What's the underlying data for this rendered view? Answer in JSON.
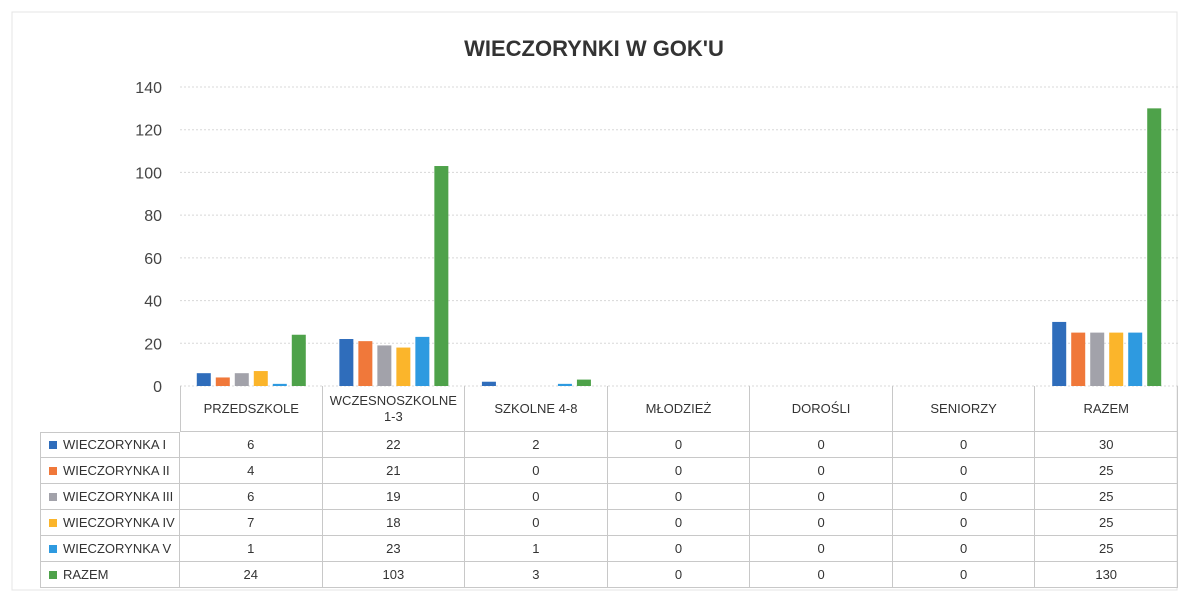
{
  "chart_data": {
    "type": "bar",
    "title": "WIECZORYNKI W GOK'U",
    "categories": [
      "PRZEDSZKOLE",
      "WCZESNOSZKOLNE 1-3",
      "SZKOLNE 4-8",
      "MŁODZIEŻ",
      "DOROŚLI",
      "SENIORZY",
      "RAZEM"
    ],
    "series": [
      {
        "name": "WIECZORYNKA I",
        "color": "#2f6dbb",
        "values": [
          6,
          22,
          2,
          0,
          0,
          0,
          30
        ]
      },
      {
        "name": "WIECZORYNKA II",
        "color": "#f0783a",
        "values": [
          4,
          21,
          0,
          0,
          0,
          0,
          25
        ]
      },
      {
        "name": "WIECZORYNKA III",
        "color": "#a2a2aa",
        "values": [
          6,
          19,
          0,
          0,
          0,
          0,
          25
        ]
      },
      {
        "name": "WIECZORYNKA IV",
        "color": "#fbb52b",
        "values": [
          7,
          18,
          0,
          0,
          0,
          0,
          25
        ]
      },
      {
        "name": "WIECZORYNKA V",
        "color": "#2e9ae0",
        "values": [
          1,
          23,
          1,
          0,
          0,
          0,
          25
        ]
      },
      {
        "name": "RAZEM",
        "color": "#4ea24a",
        "values": [
          24,
          103,
          3,
          0,
          0,
          0,
          130
        ]
      }
    ],
    "ylim": [
      0,
      140
    ],
    "yticks": [
      0,
      20,
      40,
      60,
      80,
      100,
      120,
      140
    ],
    "grid": true
  }
}
